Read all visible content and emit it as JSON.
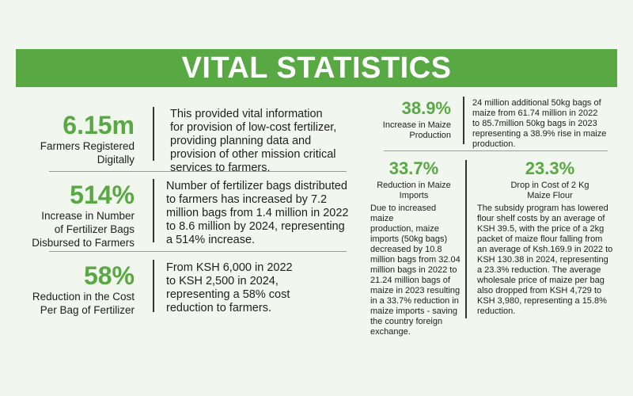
{
  "title": "VITAL STATISTICS",
  "left": [
    {
      "value": "6.15m",
      "label": [
        "Farmers Registered",
        "Digitally"
      ],
      "description": [
        "This provided vital information",
        "for provision of low-cost fertilizer,",
        "providing planning data and",
        "provision of other mission critical",
        "services to farmers."
      ]
    },
    {
      "value": "514%",
      "label": [
        "Increase in Number",
        "of Fertilizer Bags",
        "Disbursed to Farmers"
      ],
      "description": [
        "Number of fertilizer bags distributed",
        "to farmers has increased by 7.2",
        "million bags from 1.4 million in 2022",
        "to 8.6 million by 2024, representing",
        "a 514% increase."
      ]
    },
    {
      "value": "58%",
      "label": [
        "Reduction in the Cost",
        "Per Bag of Fertilizer"
      ],
      "description": [
        "From KSH 6,000 in 2022",
        "to KSH 2,500 in 2024,",
        "representing a 58% cost",
        "reduction to farmers."
      ]
    }
  ],
  "right_top": {
    "value": "38.9%",
    "label": [
      "Increase in Maize",
      "Production"
    ],
    "description": [
      "24 million additional 50kg bags of",
      "maize from 61.74 million in 2022",
      "to 85.7million 50kg bags in 2023",
      "representing a 38.9% rise in maize",
      "production."
    ]
  },
  "right_bottom": [
    {
      "value": "33.7%",
      "label": [
        "Reduction in Maize",
        "Imports"
      ],
      "description": [
        "Due to increased maize",
        "production, maize",
        "imports (50kg bags)",
        "decreased by 10.8",
        "million bags from 32.04",
        "million bags in 2022 to",
        "21.24 million bags of",
        "maize in 2023 resulting",
        "in a 33.7% reduction in",
        "maize imports - saving",
        "the country foreign",
        "exchange."
      ]
    },
    {
      "value": "23.3%",
      "label": [
        "Drop in Cost of 2 Kg",
        "Maize Flour"
      ],
      "description": [
        "The subsidy program has lowered",
        "flour shelf costs by an average of",
        "KSH 39.5, with the price of a 2kg",
        "packet of maize flour falling from",
        "an average of Ksh.169.9 in 2022 to",
        "KSH 130.38 in 2024, representing",
        "a 23.3% reduction. The average",
        "wholesale price of maize per bag",
        "also dropped from KSH 4,729 to",
        "KSH 3,980, representing a 15.8%",
        "reduction."
      ]
    }
  ]
}
